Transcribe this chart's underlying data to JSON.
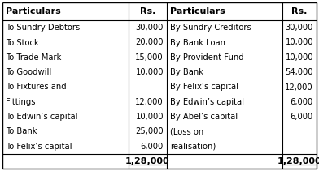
{
  "background_color": "#ffffff",
  "header_left_part": "Particulars",
  "header_left_rs": "Rs.",
  "header_right_part": "Particulars",
  "header_right_rs": "Rs.",
  "left_rows": [
    {
      "text": "To Sundry Debtors",
      "value": "30,000"
    },
    {
      "text": "To Stock",
      "value": "20,000"
    },
    {
      "text": "To Trade Mark",
      "value": "15,000"
    },
    {
      "text": "To Goodwill",
      "value": "10,000"
    },
    {
      "text": "To Fixtures and",
      "value": ""
    },
    {
      "text": "Fittings",
      "value": "12,000"
    },
    {
      "text": "To Edwin’s capital",
      "value": "10,000"
    },
    {
      "text": "To Bank",
      "value": "25,000"
    },
    {
      "text": "To Felix’s capital",
      "value": "6,000"
    }
  ],
  "right_rows": [
    {
      "text": "By Sundry Creditors",
      "value": "30,000"
    },
    {
      "text": "By Bank Loan",
      "value": "10,000"
    },
    {
      "text": "By Provident Fund",
      "value": "10,000"
    },
    {
      "text": "By Bank",
      "value": "54,000"
    },
    {
      "text": "By Felix’s capital",
      "value": "12,000"
    },
    {
      "text": "By Edwin’s capital",
      "value": "6,000"
    },
    {
      "text": "By Abel’s capital",
      "value": "6,000"
    },
    {
      "text": "(Loss on",
      "value": ""
    },
    {
      "text": "realisation)",
      "value": ""
    }
  ],
  "left_total": "1,28,000",
  "right_total": "1,28,000",
  "header_fontsize": 8.0,
  "body_fontsize": 7.2,
  "total_fontsize": 8.0
}
